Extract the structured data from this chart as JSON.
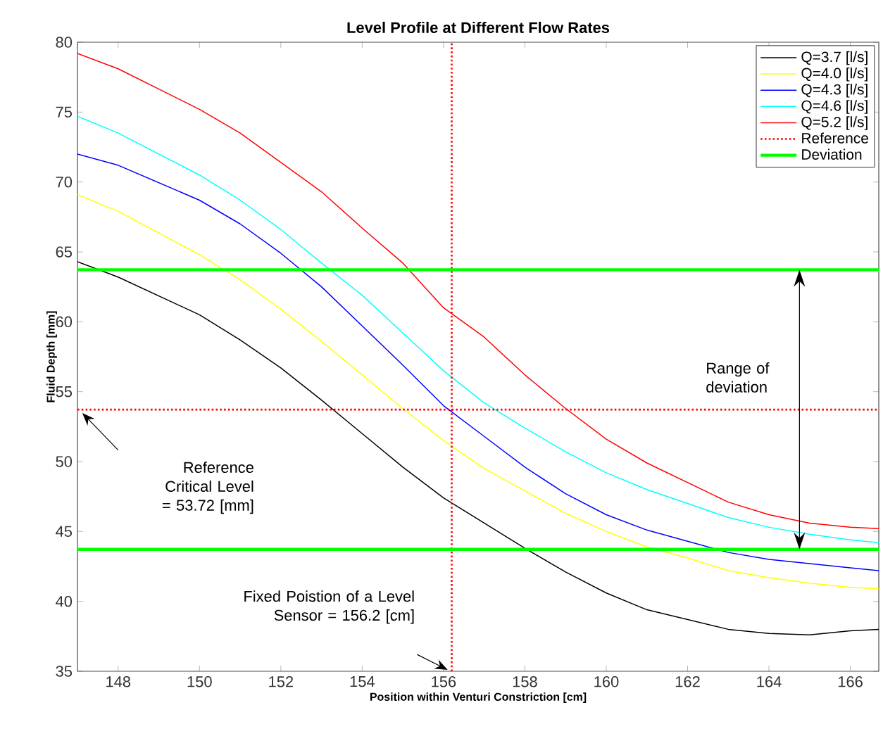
{
  "chart_data": {
    "type": "line",
    "title": "Level Profile at Different Flow Rates",
    "xlabel": "Position within Venturi Constriction [cm]",
    "ylabel": "Fluid Depth [mm]",
    "x": [
      147,
      148,
      150,
      151,
      152,
      153,
      154,
      155,
      156,
      157,
      158,
      159,
      160,
      161,
      162,
      163,
      164,
      165,
      166,
      166.7
    ],
    "series": [
      {
        "name": "Q=3.7 [l/s]",
        "color": "#000000",
        "values": [
          64.3,
          63.2,
          60.5,
          58.7,
          56.7,
          54.4,
          52.0,
          49.6,
          47.4,
          45.6,
          43.8,
          42.1,
          40.6,
          39.4,
          38.7,
          38.0,
          37.7,
          37.6,
          37.9,
          38.0
        ]
      },
      {
        "name": "Q=4.0 [l/s]",
        "color": "#ffff00",
        "values": [
          69.1,
          67.9,
          64.8,
          63.0,
          60.9,
          58.6,
          56.2,
          53.8,
          51.5,
          49.5,
          47.9,
          46.3,
          45.0,
          43.9,
          43.1,
          42.2,
          41.7,
          41.3,
          41.0,
          40.9
        ]
      },
      {
        "name": "Q=4.3 [l/s]",
        "color": "#0000ff",
        "values": [
          72.0,
          71.2,
          68.7,
          67.0,
          64.9,
          62.5,
          59.7,
          56.9,
          54.0,
          51.8,
          49.6,
          47.7,
          46.2,
          45.1,
          44.3,
          43.5,
          43.0,
          42.7,
          42.4,
          42.2
        ]
      },
      {
        "name": "Q=4.6 [l/s]",
        "color": "#00ffff",
        "values": [
          74.7,
          73.5,
          70.5,
          68.7,
          66.6,
          64.2,
          61.9,
          59.2,
          56.5,
          54.2,
          52.4,
          50.7,
          49.2,
          48.0,
          47.0,
          46.0,
          45.3,
          44.8,
          44.4,
          44.2
        ]
      },
      {
        "name": "Q=5.2 [l/s]",
        "color": "#ff0000",
        "values": [
          79.2,
          78.1,
          75.2,
          73.5,
          71.4,
          69.3,
          66.7,
          64.2,
          61.0,
          58.9,
          56.2,
          53.8,
          51.6,
          49.9,
          48.5,
          47.1,
          46.2,
          45.6,
          45.3,
          45.2
        ]
      }
    ],
    "xlim": [
      147,
      166.7
    ],
    "ylim": [
      35,
      80
    ],
    "xticks": [
      148,
      150,
      152,
      154,
      156,
      158,
      160,
      162,
      164,
      166
    ],
    "yticks": [
      35,
      40,
      45,
      50,
      55,
      60,
      65,
      70,
      75,
      80
    ],
    "ref_lines": [
      {
        "axis": "y",
        "value": 53.72,
        "label": "Reference",
        "color": "#ff0000",
        "line_style": "dotted"
      },
      {
        "axis": "x",
        "value": 156.2,
        "color": "#ff0000",
        "line_style": "dotted"
      },
      {
        "axis": "y",
        "value": 63.72,
        "label": "Deviation",
        "color": "#00ff00",
        "line_style": "solid"
      },
      {
        "axis": "y",
        "value": 43.72,
        "color": "#00ff00",
        "line_style": "solid"
      }
    ],
    "annotations": [
      "Reference Critical Level = 53.72 [mm]",
      "Fixed Poistion of a Level Sensor = 156.2 [cm]",
      "Range of deviation"
    ],
    "legend": "top right",
    "grid": false,
    "line_style": "solid",
    "marker": "none"
  }
}
